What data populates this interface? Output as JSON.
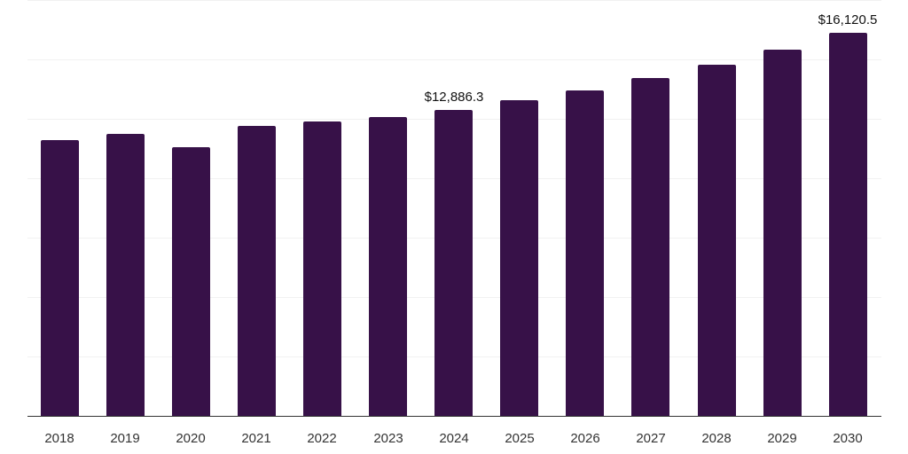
{
  "chart_data": {
    "type": "bar",
    "title": "",
    "xlabel": "",
    "ylabel": "",
    "categories": [
      "2018",
      "2019",
      "2020",
      "2021",
      "2022",
      "2023",
      "2024",
      "2025",
      "2026",
      "2027",
      "2028",
      "2029",
      "2030"
    ],
    "values": [
      11590,
      11850,
      11290,
      12220,
      12370,
      12590,
      12886.3,
      13270,
      13680,
      14200,
      14760,
      15400,
      16120.5
    ],
    "data_labels": [
      {
        "category": "2024",
        "text": "$12,886.3"
      },
      {
        "category": "2030",
        "text": "$16,120.5"
      }
    ],
    "ylim": [
      0,
      17500
    ],
    "gridlines": [
      2500,
      5000,
      7500,
      10000,
      12500,
      15000,
      17500
    ],
    "grid": true,
    "legend": null,
    "bar_color": "#371148",
    "axis_color": "#333333",
    "grid_color": "#f1f1f1"
  }
}
